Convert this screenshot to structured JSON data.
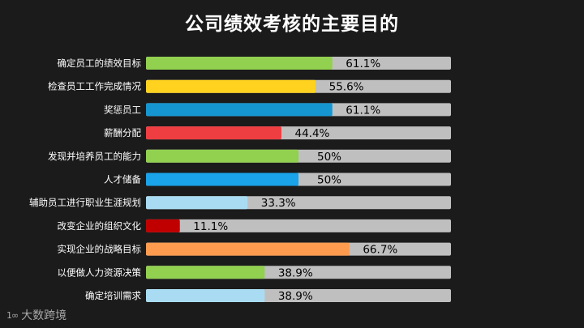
{
  "title": "公司绩效考核的主要目的",
  "logo": {
    "mark": "1∞",
    "text": "大数跨境"
  },
  "chart_data": {
    "type": "bar",
    "orientation": "horizontal",
    "title": "公司绩效考核的主要目的",
    "xlim": [
      0,
      100
    ],
    "categories": [
      "确定员工的绩效目标",
      "检查员工工作完成情况",
      "奖惩员工",
      "薪酬分配",
      "发现并培养员工的能力",
      "人才储备",
      "辅助员工进行职业生涯规划",
      "改变企业的组织文化",
      "实现企业的战略目标",
      "以便做人力资源决策",
      "确定培训需求"
    ],
    "values": [
      61.1,
      55.6,
      61.1,
      44.4,
      50,
      50,
      33.3,
      11.1,
      66.7,
      38.9,
      38.9
    ],
    "labels": [
      "61.1%",
      "55.6%",
      "61.1%",
      "44.4%",
      "50%",
      "50%",
      "33.3%",
      "11.1%",
      "66.7%",
      "38.9%",
      "38.9%"
    ],
    "bar_colors": [
      "#92d050",
      "#ffd21f",
      "#1596d1",
      "#ef3e42",
      "#92d050",
      "#1aa3e8",
      "#a9dcf2",
      "#c00000",
      "#ff9b4f",
      "#92d050",
      "#a9dcf2"
    ],
    "track_color": "#bfbfbf",
    "label_color": "#ffffff",
    "value_label_color": "#000000",
    "grid": false,
    "legend": "none"
  }
}
